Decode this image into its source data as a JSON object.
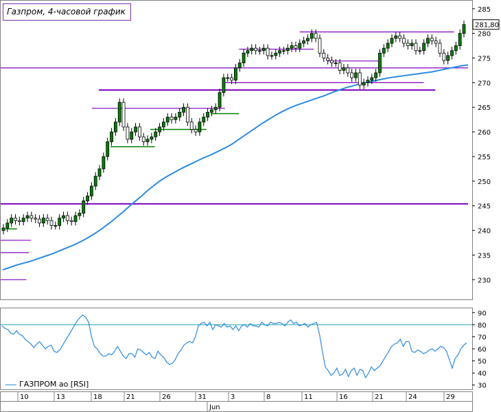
{
  "chart_title": "Газпром, 4-часовой график",
  "price_label": "281,80",
  "legend": {
    "label": "ГАЗПРОМ ао [RSI]"
  },
  "colors": {
    "candle": "#008000",
    "resistance_lines": "#8000c0",
    "moving_average": "#2a8be0",
    "rsi_line": "#2a8be0",
    "rsi_level": "#20a0b0"
  },
  "chart_data": [
    {
      "type": "candlestick",
      "y_ticks": [
        230,
        235,
        240,
        245,
        250,
        255,
        260,
        265,
        270,
        275,
        280,
        285
      ],
      "ylim": [
        226,
        286.5
      ],
      "close": [
        240.5,
        241.5,
        242.5,
        242,
        241.8,
        242.5,
        243,
        242.5,
        242.3,
        241.5,
        242.5,
        242,
        241,
        241,
        242.5,
        243,
        242,
        241.8,
        243,
        243.5,
        246,
        247,
        249,
        251,
        252.5,
        255,
        258,
        260,
        262,
        266,
        261,
        258.5,
        260,
        261,
        259,
        258,
        258.5,
        259,
        260,
        261,
        262,
        263,
        262.5,
        263,
        264,
        265,
        262,
        260.5,
        260,
        262,
        263,
        264,
        264.5,
        265,
        268,
        271,
        271,
        270.5,
        273,
        274,
        276,
        276.5,
        277,
        276.5,
        276.5,
        277,
        275.5,
        275.5,
        276,
        276.5,
        276.5,
        277,
        277.5,
        277,
        278,
        278.5,
        279,
        280,
        279,
        276,
        275,
        274.5,
        274,
        274,
        272.5,
        273,
        272,
        271,
        272,
        269.5,
        270,
        270.5,
        271,
        272,
        276,
        277,
        278,
        279,
        279.5,
        279,
        278,
        277.5,
        278,
        276.5,
        276.5,
        278,
        279,
        278.5,
        278,
        276,
        274.5,
        275.5,
        276.5,
        277.5,
        280,
        281.8
      ],
      "ma": [
        232,
        232.5,
        233,
        233.4,
        233.8,
        234.3,
        234.8,
        235.3,
        235.9,
        236.5,
        237.1,
        237.8,
        238.6,
        239.5,
        240.5,
        241.6,
        242.8,
        244,
        245.3,
        246.5,
        247.8,
        249,
        250.1,
        251,
        251.8,
        252.6,
        253.3,
        254,
        254.7,
        255.3,
        256,
        256.7,
        257.5,
        258.5,
        259.5,
        260.5,
        261.5,
        262.4,
        263.3,
        264.1,
        264.8,
        265.4,
        265.9,
        266.4,
        266.9,
        267.4,
        268,
        268.5,
        269,
        269.4,
        269.8,
        270.1,
        270.4,
        270.7,
        271,
        271.2,
        271.4,
        271.6,
        271.8,
        272,
        272.2,
        272.5,
        272.8,
        273.1,
        273.4,
        273.6
      ],
      "resistance_lines": [
        {
          "y": 245.4,
          "from": 0,
          "to": 1
        },
        {
          "y": 273.0,
          "from": 0,
          "to": 1
        },
        {
          "y": 268.5,
          "from": 0.21,
          "to": 0.93
        },
        {
          "y": 270.0,
          "from": 0.48,
          "to": 0.905
        },
        {
          "y": 264.8,
          "from": 0.195,
          "to": 0.48
        },
        {
          "y": 280.3,
          "from": 0.64,
          "to": 0.97
        },
        {
          "y": 276.8,
          "from": 0.51,
          "to": 0.67
        },
        {
          "y": 274.4,
          "from": 0.7,
          "to": 0.81
        },
        {
          "y": 238.0,
          "from": 0,
          "to": 0.065
        },
        {
          "y": 235.5,
          "from": 0,
          "to": 0.06
        },
        {
          "y": 230.0,
          "from": 0,
          "to": 0.055
        }
      ],
      "support_lines": [
        {
          "y": 257.0,
          "from": 0.235,
          "to": 0.33
        },
        {
          "y": 260.5,
          "from": 0.32,
          "to": 0.44
        },
        {
          "y": 263.7,
          "from": 0.45,
          "to": 0.51
        },
        {
          "y": 240.3,
          "from": 0.01,
          "to": 0.035
        }
      ]
    },
    {
      "type": "line",
      "name": "ГАЗПРОМ ао [RSI]",
      "y_ticks": [
        30,
        40,
        50,
        60,
        70,
        80,
        90
      ],
      "ylim": [
        27,
        93
      ],
      "level": 80,
      "values": [
        79,
        77,
        76,
        73,
        72,
        75,
        72,
        71,
        68,
        66,
        64,
        61,
        64,
        66,
        63,
        60,
        62,
        63,
        58,
        57,
        59,
        63,
        67,
        71,
        75,
        79,
        83,
        86,
        88,
        86,
        82,
        70,
        62,
        60,
        56,
        54,
        54,
        56,
        55,
        58,
        62,
        58,
        54,
        52,
        56,
        56,
        53,
        60,
        59,
        57,
        55,
        57,
        53,
        52,
        58,
        55,
        53,
        49,
        47,
        48,
        51,
        56,
        59,
        63,
        65,
        66,
        65,
        70,
        79,
        81,
        82,
        79,
        82,
        76,
        80,
        79,
        78,
        81,
        78,
        79,
        76,
        79,
        75,
        79,
        80,
        78,
        81,
        79,
        79,
        78,
        82,
        80,
        79,
        82,
        81,
        81,
        82,
        81,
        79,
        82,
        84,
        81,
        82,
        79,
        80,
        81,
        78,
        80,
        81,
        82,
        72,
        58,
        45,
        42,
        38,
        40,
        44,
        38,
        39,
        43,
        37,
        42,
        44,
        38,
        43,
        42,
        36,
        40,
        45,
        42,
        44,
        46,
        50,
        54,
        58,
        62,
        64,
        65,
        68,
        62,
        66,
        66,
        58,
        57,
        59,
        58,
        56,
        57,
        59,
        60,
        58,
        60,
        62,
        61,
        58,
        51,
        44,
        52,
        55,
        60,
        63,
        65
      ]
    }
  ],
  "x_axis": {
    "labels": [
      "10",
      "13",
      "18",
      "21",
      "26",
      "31",
      "3",
      "8",
      "11",
      "16",
      "21",
      "24",
      "29"
    ],
    "month_label": "Jun"
  }
}
